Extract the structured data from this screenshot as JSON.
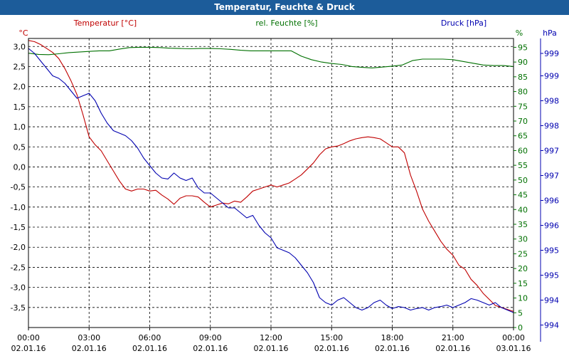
{
  "window": {
    "title": "Temperatur, Feuchte & Druck"
  },
  "colors": {
    "title_bar": "#1c5c9a",
    "temperature": "#c00000",
    "humidity": "#007000",
    "pressure": "#0000b0",
    "grid": "#000000",
    "text": "#000000"
  },
  "chart_data": {
    "type": "line",
    "title": "Temperatur, Feuchte & Druck",
    "grid": true,
    "legend": "top",
    "x_ticks": [
      {
        "time": "00:00",
        "date": "02.01.16"
      },
      {
        "time": "03:00",
        "date": "02.01.16"
      },
      {
        "time": "06:00",
        "date": "02.01.16"
      },
      {
        "time": "09:00",
        "date": "02.01.16"
      },
      {
        "time": "12:00",
        "date": "02.01.16"
      },
      {
        "time": "15:00",
        "date": "02.01.16"
      },
      {
        "time": "18:00",
        "date": "02.01.16"
      },
      {
        "time": "21:00",
        "date": "02.01.16"
      },
      {
        "time": "00:00",
        "date": "03.01.16"
      }
    ],
    "x_range_hours": [
      0,
      24
    ],
    "axes": {
      "temperature": {
        "series_label": "Temperatur [°C]",
        "unit": "°C",
        "side": "left",
        "range": [
          -4.0,
          3.2
        ],
        "ticks": [
          3.0,
          2.5,
          2.0,
          1.5,
          1.0,
          0.5,
          0.0,
          -0.5,
          -1.0,
          -1.5,
          -2.0,
          -2.5,
          -3.0,
          -3.5
        ],
        "tick_labels": [
          "3,0",
          "2,5",
          "2,0",
          "1,5",
          "1,0",
          "0,5",
          "0,0",
          "-0,5",
          "-1,0",
          "-1,5",
          "-2,0",
          "-2,5",
          "-3,0",
          "-3,5"
        ]
      },
      "humidity": {
        "series_label": "rel. Feuchte [%]",
        "unit": "%",
        "side": "right",
        "range": [
          0,
          98
        ],
        "ticks": [
          95,
          90,
          85,
          80,
          75,
          70,
          65,
          60,
          55,
          50,
          45,
          40,
          35,
          30,
          25,
          20,
          15,
          10,
          5,
          0
        ],
        "tick_labels": [
          "95",
          "90",
          "85",
          "80",
          "75",
          "70",
          "65",
          "60",
          "55",
          "50",
          "45",
          "40",
          "35",
          "30",
          "25",
          "20",
          "15",
          "10",
          "5",
          "0"
        ]
      },
      "pressure": {
        "series_label": "Druck [hPa]",
        "unit": "hPa",
        "side": "right",
        "range": [
          993.7,
          999.5
        ],
        "ticks": [
          999.2,
          998.75,
          998.25,
          997.75,
          997.25,
          996.75,
          996.25,
          995.75,
          995.25,
          994.75,
          994.25,
          993.75
        ],
        "tick_labels": [
          "999",
          "999",
          "998",
          "998",
          "997",
          "997",
          "996",
          "996",
          "995",
          "995",
          "994",
          "994"
        ]
      }
    },
    "series": [
      {
        "name": "Temperatur [°C]",
        "axis": "temperature",
        "points": [
          [
            0.0,
            3.15
          ],
          [
            0.3,
            3.12
          ],
          [
            0.6,
            3.05
          ],
          [
            0.9,
            2.95
          ],
          [
            1.2,
            2.85
          ],
          [
            1.5,
            2.7
          ],
          [
            1.8,
            2.45
          ],
          [
            2.1,
            2.15
          ],
          [
            2.4,
            1.8
          ],
          [
            2.7,
            1.3
          ],
          [
            3.0,
            0.75
          ],
          [
            3.3,
            0.55
          ],
          [
            3.6,
            0.4
          ],
          [
            3.9,
            0.15
          ],
          [
            4.2,
            -0.1
          ],
          [
            4.5,
            -0.35
          ],
          [
            4.8,
            -0.55
          ],
          [
            5.1,
            -0.6
          ],
          [
            5.4,
            -0.55
          ],
          [
            5.7,
            -0.55
          ],
          [
            6.0,
            -0.6
          ],
          [
            6.3,
            -0.58
          ],
          [
            6.6,
            -0.7
          ],
          [
            6.9,
            -0.8
          ],
          [
            7.2,
            -0.93
          ],
          [
            7.5,
            -0.78
          ],
          [
            7.8,
            -0.72
          ],
          [
            8.1,
            -0.72
          ],
          [
            8.4,
            -0.75
          ],
          [
            8.7,
            -0.88
          ],
          [
            9.0,
            -1.0
          ],
          [
            9.3,
            -0.95
          ],
          [
            9.6,
            -0.9
          ],
          [
            9.9,
            -0.92
          ],
          [
            10.2,
            -0.85
          ],
          [
            10.5,
            -0.88
          ],
          [
            10.8,
            -0.75
          ],
          [
            11.1,
            -0.6
          ],
          [
            11.4,
            -0.55
          ],
          [
            11.7,
            -0.5
          ],
          [
            12.0,
            -0.45
          ],
          [
            12.3,
            -0.5
          ],
          [
            12.6,
            -0.45
          ],
          [
            12.9,
            -0.4
          ],
          [
            13.2,
            -0.3
          ],
          [
            13.5,
            -0.2
          ],
          [
            13.8,
            -0.05
          ],
          [
            14.1,
            0.1
          ],
          [
            14.4,
            0.3
          ],
          [
            14.7,
            0.45
          ],
          [
            15.0,
            0.5
          ],
          [
            15.3,
            0.52
          ],
          [
            15.6,
            0.58
          ],
          [
            15.9,
            0.65
          ],
          [
            16.2,
            0.7
          ],
          [
            16.5,
            0.73
          ],
          [
            16.8,
            0.75
          ],
          [
            17.1,
            0.73
          ],
          [
            17.4,
            0.7
          ],
          [
            17.7,
            0.6
          ],
          [
            18.0,
            0.5
          ],
          [
            18.3,
            0.5
          ],
          [
            18.6,
            0.35
          ],
          [
            18.9,
            -0.2
          ],
          [
            19.2,
            -0.6
          ],
          [
            19.5,
            -1.05
          ],
          [
            19.8,
            -1.35
          ],
          [
            20.1,
            -1.6
          ],
          [
            20.4,
            -1.85
          ],
          [
            20.7,
            -2.05
          ],
          [
            21.0,
            -2.2
          ],
          [
            21.3,
            -2.45
          ],
          [
            21.6,
            -2.55
          ],
          [
            21.9,
            -2.8
          ],
          [
            22.2,
            -2.95
          ],
          [
            22.5,
            -3.15
          ],
          [
            22.8,
            -3.3
          ],
          [
            23.1,
            -3.45
          ],
          [
            23.4,
            -3.5
          ],
          [
            23.7,
            -3.55
          ],
          [
            24.0,
            -3.6
          ]
        ]
      },
      {
        "name": "rel. Feuchte [%]",
        "axis": "humidity",
        "points": [
          [
            0.0,
            93
          ],
          [
            0.5,
            92.6
          ],
          [
            1.0,
            92.5
          ],
          [
            1.5,
            92.8
          ],
          [
            2.0,
            93.2
          ],
          [
            2.5,
            93.4
          ],
          [
            3.0,
            93.6
          ],
          [
            3.5,
            93.8
          ],
          [
            4.0,
            93.8
          ],
          [
            4.5,
            94.4
          ],
          [
            5.0,
            94.9
          ],
          [
            5.5,
            95.0
          ],
          [
            6.0,
            95.0
          ],
          [
            6.5,
            94.9
          ],
          [
            7.0,
            94.7
          ],
          [
            7.5,
            94.6
          ],
          [
            8.0,
            94.5
          ],
          [
            8.5,
            94.6
          ],
          [
            9.0,
            94.6
          ],
          [
            9.5,
            94.5
          ],
          [
            10.0,
            94.3
          ],
          [
            10.5,
            94.0
          ],
          [
            11.0,
            93.8
          ],
          [
            11.5,
            93.8
          ],
          [
            12.0,
            93.8
          ],
          [
            12.5,
            93.8
          ],
          [
            13.0,
            93.8
          ],
          [
            13.5,
            92.0
          ],
          [
            14.0,
            90.8
          ],
          [
            14.5,
            90.0
          ],
          [
            15.0,
            89.5
          ],
          [
            15.5,
            89.2
          ],
          [
            16.0,
            88.5
          ],
          [
            16.5,
            88.2
          ],
          [
            17.0,
            88.0
          ],
          [
            17.5,
            88.3
          ],
          [
            18.0,
            88.6
          ],
          [
            18.5,
            89.0
          ],
          [
            19.0,
            90.5
          ],
          [
            19.5,
            91.0
          ],
          [
            20.0,
            91.0
          ],
          [
            20.5,
            91.0
          ],
          [
            21.0,
            90.8
          ],
          [
            21.5,
            90.2
          ],
          [
            22.0,
            89.6
          ],
          [
            22.5,
            89.0
          ],
          [
            23.0,
            88.8
          ],
          [
            23.5,
            88.8
          ],
          [
            24.0,
            88.5
          ]
        ]
      },
      {
        "name": "Druck [hPa]",
        "axis": "pressure",
        "points": [
          [
            0.0,
            999.3
          ],
          [
            0.3,
            999.2
          ],
          [
            0.6,
            999.05
          ],
          [
            0.9,
            998.9
          ],
          [
            1.2,
            998.75
          ],
          [
            1.5,
            998.7
          ],
          [
            1.8,
            998.6
          ],
          [
            2.1,
            998.45
          ],
          [
            2.4,
            998.3
          ],
          [
            2.7,
            998.35
          ],
          [
            3.0,
            998.4
          ],
          [
            3.3,
            998.25
          ],
          [
            3.6,
            998.0
          ],
          [
            3.9,
            997.8
          ],
          [
            4.2,
            997.65
          ],
          [
            4.5,
            997.6
          ],
          [
            4.8,
            997.55
          ],
          [
            5.1,
            997.45
          ],
          [
            5.4,
            997.3
          ],
          [
            5.7,
            997.1
          ],
          [
            6.0,
            996.95
          ],
          [
            6.3,
            996.8
          ],
          [
            6.6,
            996.7
          ],
          [
            6.9,
            996.68
          ],
          [
            7.2,
            996.8
          ],
          [
            7.5,
            996.7
          ],
          [
            7.8,
            996.65
          ],
          [
            8.1,
            996.7
          ],
          [
            8.4,
            996.5
          ],
          [
            8.7,
            996.4
          ],
          [
            9.0,
            996.4
          ],
          [
            9.3,
            996.3
          ],
          [
            9.6,
            996.2
          ],
          [
            9.9,
            996.1
          ],
          [
            10.2,
            996.1
          ],
          [
            10.5,
            996.0
          ],
          [
            10.8,
            995.9
          ],
          [
            11.1,
            995.95
          ],
          [
            11.4,
            995.75
          ],
          [
            11.7,
            995.6
          ],
          [
            12.0,
            995.5
          ],
          [
            12.3,
            995.3
          ],
          [
            12.6,
            995.25
          ],
          [
            12.9,
            995.2
          ],
          [
            13.2,
            995.1
          ],
          [
            13.5,
            994.95
          ],
          [
            13.8,
            994.8
          ],
          [
            14.1,
            994.6
          ],
          [
            14.4,
            994.3
          ],
          [
            14.7,
            994.2
          ],
          [
            15.0,
            994.15
          ],
          [
            15.3,
            994.25
          ],
          [
            15.6,
            994.3
          ],
          [
            15.9,
            994.2
          ],
          [
            16.2,
            994.1
          ],
          [
            16.5,
            994.05
          ],
          [
            16.8,
            994.1
          ],
          [
            17.1,
            994.2
          ],
          [
            17.4,
            994.25
          ],
          [
            17.7,
            994.15
          ],
          [
            18.0,
            994.08
          ],
          [
            18.3,
            994.12
          ],
          [
            18.6,
            994.1
          ],
          [
            18.9,
            994.05
          ],
          [
            19.2,
            994.08
          ],
          [
            19.5,
            994.1
          ],
          [
            19.8,
            994.05
          ],
          [
            20.1,
            994.1
          ],
          [
            20.4,
            994.12
          ],
          [
            20.7,
            994.15
          ],
          [
            21.0,
            994.1
          ],
          [
            21.3,
            994.15
          ],
          [
            21.6,
            994.2
          ],
          [
            21.9,
            994.28
          ],
          [
            22.2,
            994.25
          ],
          [
            22.5,
            994.2
          ],
          [
            22.8,
            994.15
          ],
          [
            23.1,
            994.2
          ],
          [
            23.4,
            994.1
          ],
          [
            23.7,
            994.05
          ],
          [
            24.0,
            994.0
          ]
        ]
      }
    ]
  }
}
